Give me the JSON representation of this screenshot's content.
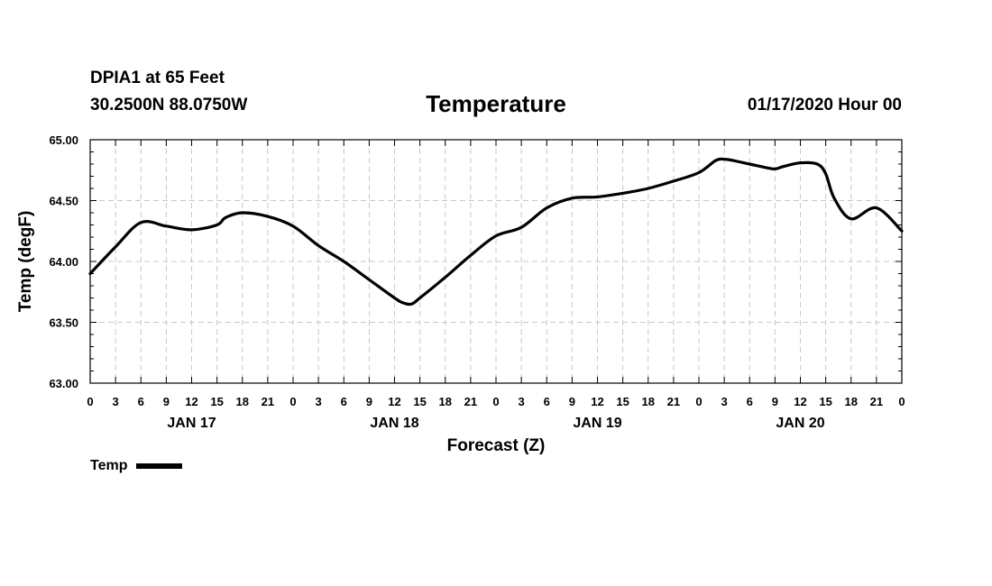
{
  "header": {
    "station": "DPIA1 at 65 Feet",
    "coords": "30.2500N 88.0750W",
    "title": "Temperature",
    "issued": "01/17/2020 Hour 00"
  },
  "legend": {
    "label": "Temp"
  },
  "chart_data": {
    "type": "line",
    "title": "Temperature",
    "xlabel": "Forecast (Z)",
    "ylabel": "Temp (degF)",
    "ylim": [
      63.0,
      65.0
    ],
    "xlim": [
      0,
      96
    ],
    "y_ticks": [
      "63.00",
      "63.50",
      "64.00",
      "64.50",
      "65.00"
    ],
    "x_tick_labels": [
      "0",
      "3",
      "6",
      "9",
      "12",
      "15",
      "18",
      "21",
      "0",
      "3",
      "6",
      "9",
      "12",
      "15",
      "18",
      "21",
      "0",
      "3",
      "6",
      "9",
      "12",
      "15",
      "18",
      "21",
      "0",
      "3",
      "6",
      "9",
      "12",
      "15",
      "18",
      "21",
      "0"
    ],
    "day_labels": [
      {
        "text": "JAN 17",
        "hour": 12
      },
      {
        "text": "JAN 18",
        "hour": 36
      },
      {
        "text": "JAN 19",
        "hour": 60
      },
      {
        "text": "JAN 20",
        "hour": 84
      }
    ],
    "grid": true,
    "series": [
      {
        "name": "Temp",
        "color": "#000000",
        "x": [
          0,
          3,
          6,
          9,
          12,
          15,
          16,
          18,
          21,
          24,
          27,
          30,
          33,
          36,
          37,
          38,
          39,
          42,
          45,
          48,
          51,
          54,
          57,
          60,
          63,
          66,
          69,
          72,
          74,
          75,
          76,
          78,
          80,
          81,
          82,
          84,
          86,
          87,
          88,
          90,
          93,
          96
        ],
        "values": [
          63.9,
          64.12,
          64.32,
          64.29,
          64.26,
          64.3,
          64.36,
          64.4,
          64.37,
          64.29,
          64.13,
          64.0,
          63.85,
          63.7,
          63.66,
          63.65,
          63.7,
          63.87,
          64.05,
          64.21,
          64.28,
          64.44,
          64.52,
          64.53,
          64.56,
          64.6,
          64.66,
          64.73,
          64.83,
          64.84,
          64.83,
          64.8,
          64.77,
          64.76,
          64.78,
          64.81,
          64.8,
          64.72,
          64.52,
          64.35,
          64.44,
          64.25
        ]
      }
    ]
  }
}
